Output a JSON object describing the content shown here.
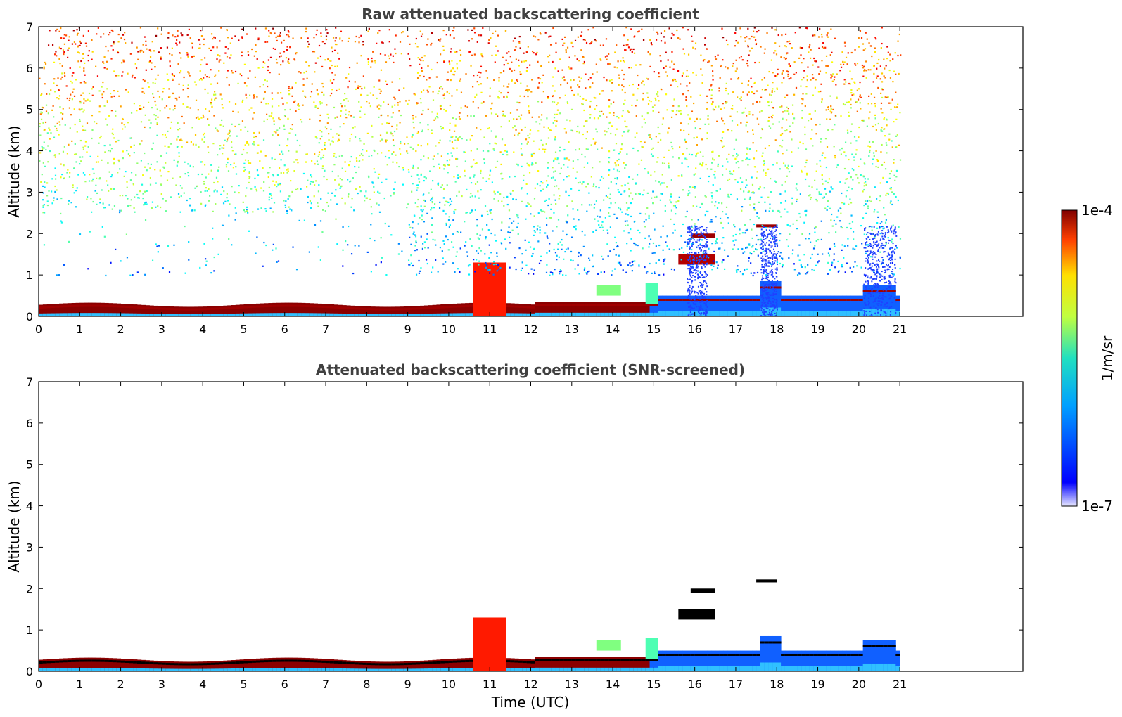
{
  "chart_data": [
    {
      "type": "heatmap",
      "title": "Raw attenuated backscattering coefficient",
      "xlabel": "",
      "ylabel": "Altitude (km)",
      "xlim": [
        0,
        24
      ],
      "ylim": [
        0,
        7
      ],
      "x_ticks": [
        "0",
        "1",
        "2",
        "3",
        "4",
        "5",
        "6",
        "7",
        "8",
        "9",
        "10",
        "11",
        "12",
        "13",
        "14",
        "15",
        "16",
        "17",
        "18",
        "19",
        "20",
        "21"
      ],
      "y_ticks": [
        "0",
        "1",
        "2",
        "3",
        "4",
        "5",
        "6",
        "7"
      ],
      "data_end_hour": 21,
      "features": [
        {
          "kind": "surface_layer",
          "altitude_km": [
            0.0,
            0.35
          ],
          "hours": [
            0,
            21
          ]
        },
        {
          "kind": "noise_field",
          "altitude_km": [
            1.0,
            7.0
          ],
          "hours": [
            0,
            21
          ],
          "trend": "log10 value increases with altitude"
        },
        {
          "kind": "cloud",
          "hours": [
            10.6,
            11.4
          ],
          "altitude_km": [
            0.0,
            1.3
          ]
        },
        {
          "kind": "cloud",
          "hours": [
            15.6,
            16.5
          ],
          "altitude_km": [
            1.2,
            2.0
          ]
        },
        {
          "kind": "cloud",
          "hours": [
            17.5,
            18.0
          ],
          "altitude_km": [
            2.1,
            2.2
          ]
        },
        {
          "kind": "aerosol",
          "hours": [
            14.8,
            21.0
          ],
          "altitude_km": [
            0.0,
            0.9
          ]
        }
      ]
    },
    {
      "type": "heatmap",
      "title": "Attenuated backscattering coefficient (SNR-screened)",
      "xlabel": "Time (UTC)",
      "ylabel": "Altitude (km)",
      "xlim": [
        0,
        24
      ],
      "ylim": [
        0,
        7
      ],
      "x_ticks": [
        "0",
        "1",
        "2",
        "3",
        "4",
        "5",
        "6",
        "7",
        "8",
        "9",
        "10",
        "11",
        "12",
        "13",
        "14",
        "15",
        "16",
        "17",
        "18",
        "19",
        "20",
        "21"
      ],
      "y_ticks": [
        "0",
        "1",
        "2",
        "3",
        "4",
        "5",
        "6",
        "7"
      ],
      "data_end_hour": 21
    }
  ],
  "colorbar": {
    "label": "1/m/sr",
    "max_label": "1e-4",
    "min_label": "1e-7",
    "scale": "log",
    "range": [
      1e-07,
      0.0001
    ],
    "colormap": "jet"
  }
}
